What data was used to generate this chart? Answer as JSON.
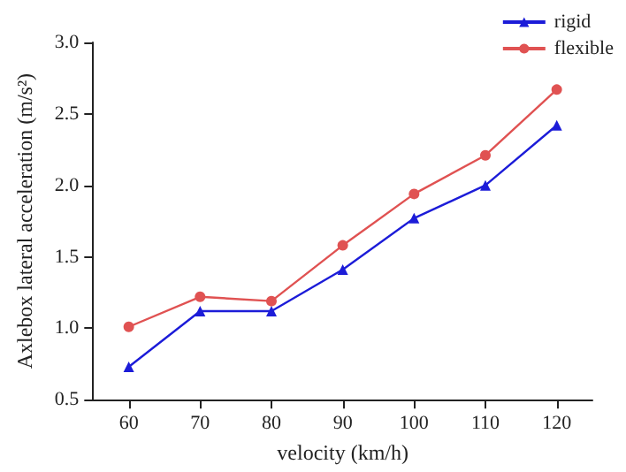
{
  "chart_data": {
    "type": "line",
    "xlabel": "velocity (km/h)",
    "ylabel": "Axlebox lateral acceleration (m/s²)",
    "x": [
      60,
      70,
      80,
      90,
      100,
      110,
      120
    ],
    "series": [
      {
        "name": "rigid",
        "color": "#1c1cd8",
        "marker": "triangle",
        "values": [
          0.73,
          1.12,
          1.12,
          1.41,
          1.77,
          2.0,
          2.42
        ]
      },
      {
        "name": "flexible",
        "color": "#e05252",
        "marker": "circle",
        "values": [
          1.01,
          1.22,
          1.19,
          1.58,
          1.94,
          2.21,
          2.67
        ]
      }
    ],
    "xlim": [
      55,
      125
    ],
    "xticks": [
      60,
      70,
      80,
      90,
      100,
      110,
      120
    ],
    "ylim": [
      0.5,
      3.0
    ],
    "yticks": [
      0.5,
      {
        "value": 1,
        "label": "1.0"
      },
      1.5,
      {
        "value": 2,
        "label": "2.0"
      },
      2.5,
      {
        "value": 3,
        "label": "3.0"
      }
    ],
    "grid": false,
    "legend": "top right",
    "line_style": "solid"
  }
}
